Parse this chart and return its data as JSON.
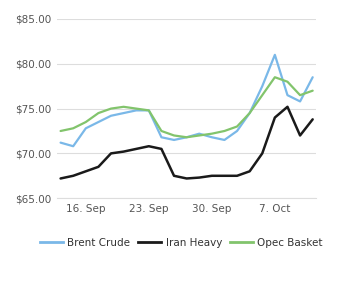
{
  "title": "",
  "xlabel": "",
  "ylabel": "",
  "ylim": [
    65.0,
    85.0
  ],
  "yticks": [
    65.0,
    70.0,
    75.0,
    80.0,
    85.0
  ],
  "ytick_labels": [
    "$65.00",
    "$70.00",
    "$75.00",
    "$80.00",
    "$85.00"
  ],
  "xtick_positions": [
    2,
    7,
    12,
    17
  ],
  "xtick_labels": [
    "16. Sep",
    "23. Sep",
    "30. Sep",
    "7. Oct"
  ],
  "background_color": "#ffffff",
  "grid_color": "#dddddd",
  "series": [
    {
      "name": "Brent Crude",
      "color": "#7ab8e8",
      "linewidth": 1.6,
      "values": [
        71.2,
        70.8,
        72.8,
        73.5,
        74.2,
        74.5,
        74.8,
        74.8,
        71.8,
        71.5,
        71.8,
        72.2,
        71.8,
        71.5,
        72.5,
        74.5,
        77.5,
        81.0,
        76.5,
        75.8,
        78.5
      ]
    },
    {
      "name": "Iran Heavy",
      "color": "#1a1a1a",
      "linewidth": 1.8,
      "values": [
        67.2,
        67.5,
        68.0,
        68.5,
        70.0,
        70.2,
        70.5,
        70.8,
        70.5,
        67.5,
        67.2,
        67.3,
        67.5,
        67.5,
        67.5,
        68.0,
        70.0,
        74.0,
        75.2,
        72.0,
        73.8
      ]
    },
    {
      "name": "Opec Basket",
      "color": "#82c46c",
      "linewidth": 1.6,
      "values": [
        72.5,
        72.8,
        73.5,
        74.5,
        75.0,
        75.2,
        75.0,
        74.8,
        72.5,
        72.0,
        71.8,
        72.0,
        72.2,
        72.5,
        73.0,
        74.5,
        76.5,
        78.5,
        78.0,
        76.5,
        77.0
      ]
    }
  ],
  "legend_labels": [
    "Brent Crude",
    "Iran Heavy",
    "Opec Basket"
  ],
  "legend_colors": [
    "#7ab8e8",
    "#1a1a1a",
    "#82c46c"
  ],
  "fig_width": 3.4,
  "fig_height": 3.0,
  "dpi": 100
}
